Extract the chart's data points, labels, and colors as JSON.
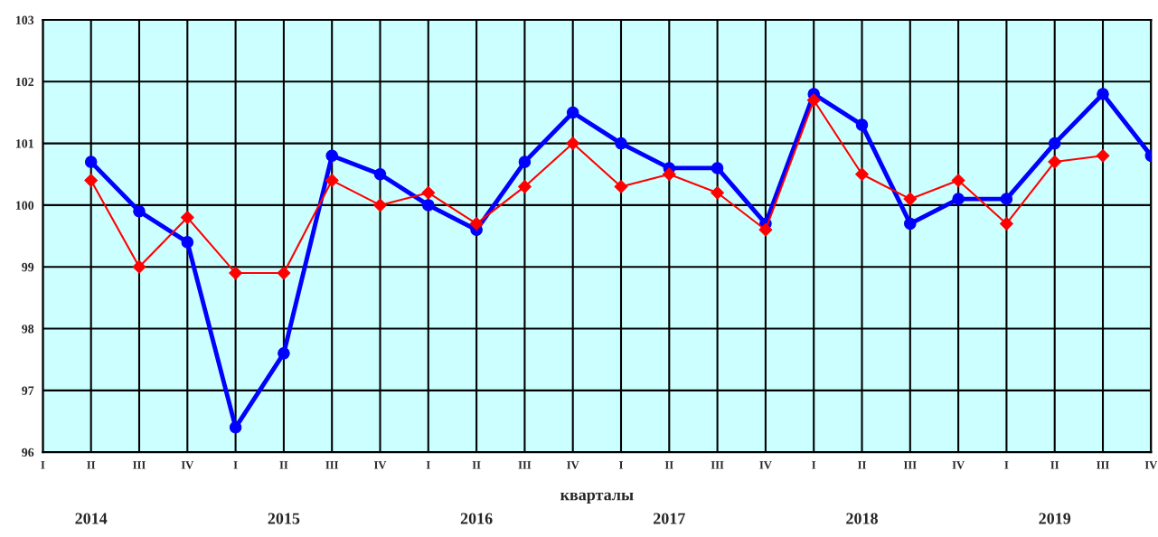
{
  "chart_data": {
    "type": "line",
    "categories": [
      "I",
      "II",
      "III",
      "IV",
      "I",
      "II",
      "III",
      "IV",
      "I",
      "II",
      "III",
      "IV",
      "I",
      "II",
      "III",
      "IV",
      "I",
      "II",
      "III",
      "IV",
      "I",
      "II",
      "III",
      "IV"
    ],
    "series": [
      {
        "color": "#0000ff",
        "marker": "circle",
        "values": [
          null,
          100.7,
          99.9,
          99.4,
          96.4,
          97.6,
          100.8,
          100.5,
          100.0,
          99.6,
          100.7,
          101.5,
          101.0,
          100.6,
          100.6,
          99.7,
          101.8,
          101.3,
          99.7,
          100.1,
          100.1,
          101.0,
          101.8,
          100.8
        ]
      },
      {
        "color": "#ff0000",
        "marker": "diamond",
        "values": [
          null,
          100.4,
          99.0,
          99.8,
          98.9,
          98.9,
          100.4,
          100.0,
          100.2,
          99.7,
          100.3,
          101.0,
          100.3,
          100.5,
          100.2,
          99.6,
          101.7,
          100.5,
          100.1,
          100.4,
          99.7,
          100.7,
          100.8,
          null
        ]
      }
    ],
    "xlabel": "кварталы",
    "annotations": [
      "2014",
      "2015",
      "2016",
      "2017",
      "2018",
      "2019"
    ],
    "ylim": [
      96,
      103
    ],
    "yticks": [
      96,
      97,
      98,
      99,
      100,
      101,
      102,
      103
    ],
    "grid": true,
    "legend": false
  }
}
